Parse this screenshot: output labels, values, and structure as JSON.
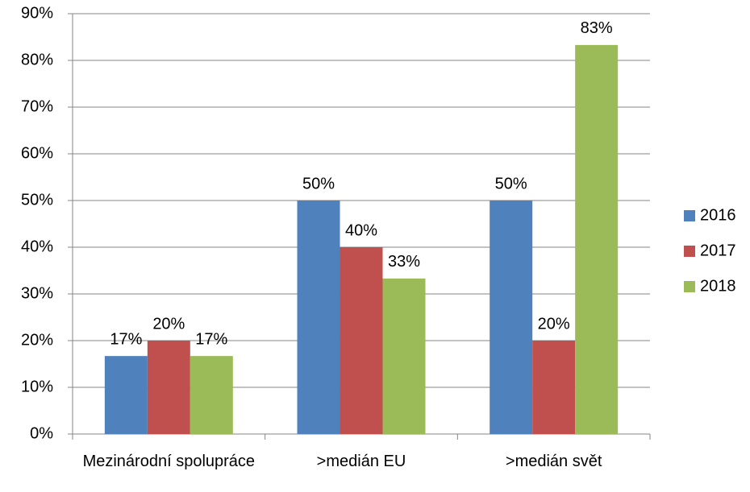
{
  "chart_data": {
    "type": "bar",
    "categories": [
      "Mezinárodní spolupráce",
      ">medián EU",
      ">medián svět"
    ],
    "series": [
      {
        "name": "2016",
        "color": "#4f81bd",
        "values": [
          16.7,
          50,
          50
        ],
        "value_labels": [
          "17%",
          "50%",
          "50%"
        ]
      },
      {
        "name": "2017",
        "color": "#c0504d",
        "values": [
          20,
          40,
          20
        ],
        "value_labels": [
          "20%",
          "40%",
          "20%"
        ]
      },
      {
        "name": "2018",
        "color": "#9bbb59",
        "values": [
          16.7,
          33.3,
          83.3
        ],
        "value_labels": [
          "17%",
          "33%",
          "83%"
        ]
      }
    ],
    "ylim": [
      0,
      90
    ],
    "yticks": [
      {
        "value": 0,
        "label": "0%"
      },
      {
        "value": 10,
        "label": "10%"
      },
      {
        "value": 20,
        "label": "20%"
      },
      {
        "value": 30,
        "label": "30%"
      },
      {
        "value": 40,
        "label": "40%"
      },
      {
        "value": 50,
        "label": "50%"
      },
      {
        "value": 60,
        "label": "60%"
      },
      {
        "value": 70,
        "label": "70%"
      },
      {
        "value": 80,
        "label": "80%"
      },
      {
        "value": 90,
        "label": "90%"
      }
    ],
    "grid": true,
    "legend": "right"
  }
}
